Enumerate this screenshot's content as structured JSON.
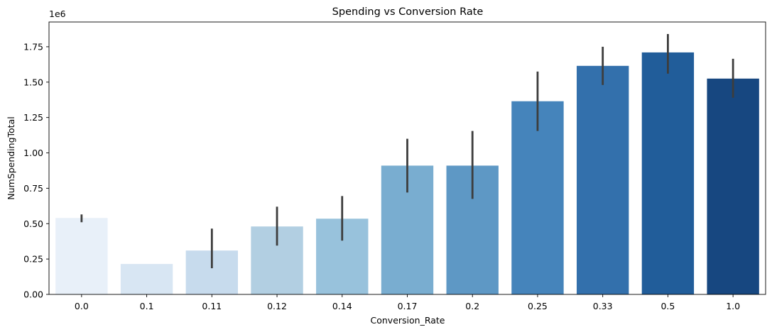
{
  "chart_data": {
    "type": "bar",
    "title": "Spending vs Conversion Rate",
    "xlabel": "Conversion_Rate",
    "ylabel": "NumSpendingTotal",
    "y_multiplier_label": "1e6",
    "categories": [
      "0.0",
      "0.1",
      "0.11",
      "0.12",
      "0.14",
      "0.17",
      "0.2",
      "0.25",
      "0.33",
      "0.5",
      "1.0"
    ],
    "values": [
      0.54,
      0.215,
      0.31,
      0.48,
      0.535,
      0.91,
      0.91,
      1.365,
      1.615,
      1.71,
      1.525
    ],
    "error_low": [
      0.51,
      0.215,
      0.185,
      0.345,
      0.38,
      0.72,
      0.675,
      1.155,
      1.48,
      1.56,
      1.39
    ],
    "error_high": [
      0.565,
      0.215,
      0.465,
      0.62,
      0.695,
      1.1,
      1.155,
      1.575,
      1.75,
      1.84,
      1.665
    ],
    "colors": [
      "#e8f0f9",
      "#d8e6f3",
      "#c7dbed",
      "#b2cfe2",
      "#98c2dc",
      "#79add0",
      "#5e98c5",
      "#4584bb",
      "#3370ac",
      "#215d9a",
      "#174780"
    ],
    "error_color": "#3d3d3d",
    "yticks": [
      "0.00",
      "0.25",
      "0.50",
      "0.75",
      "1.00",
      "1.25",
      "1.50",
      "1.75"
    ],
    "ytick_values": [
      0,
      0.25,
      0.5,
      0.75,
      1.0,
      1.25,
      1.5,
      1.75
    ],
    "ylim": [
      0,
      1.925
    ],
    "grid": false,
    "legend": "none"
  }
}
